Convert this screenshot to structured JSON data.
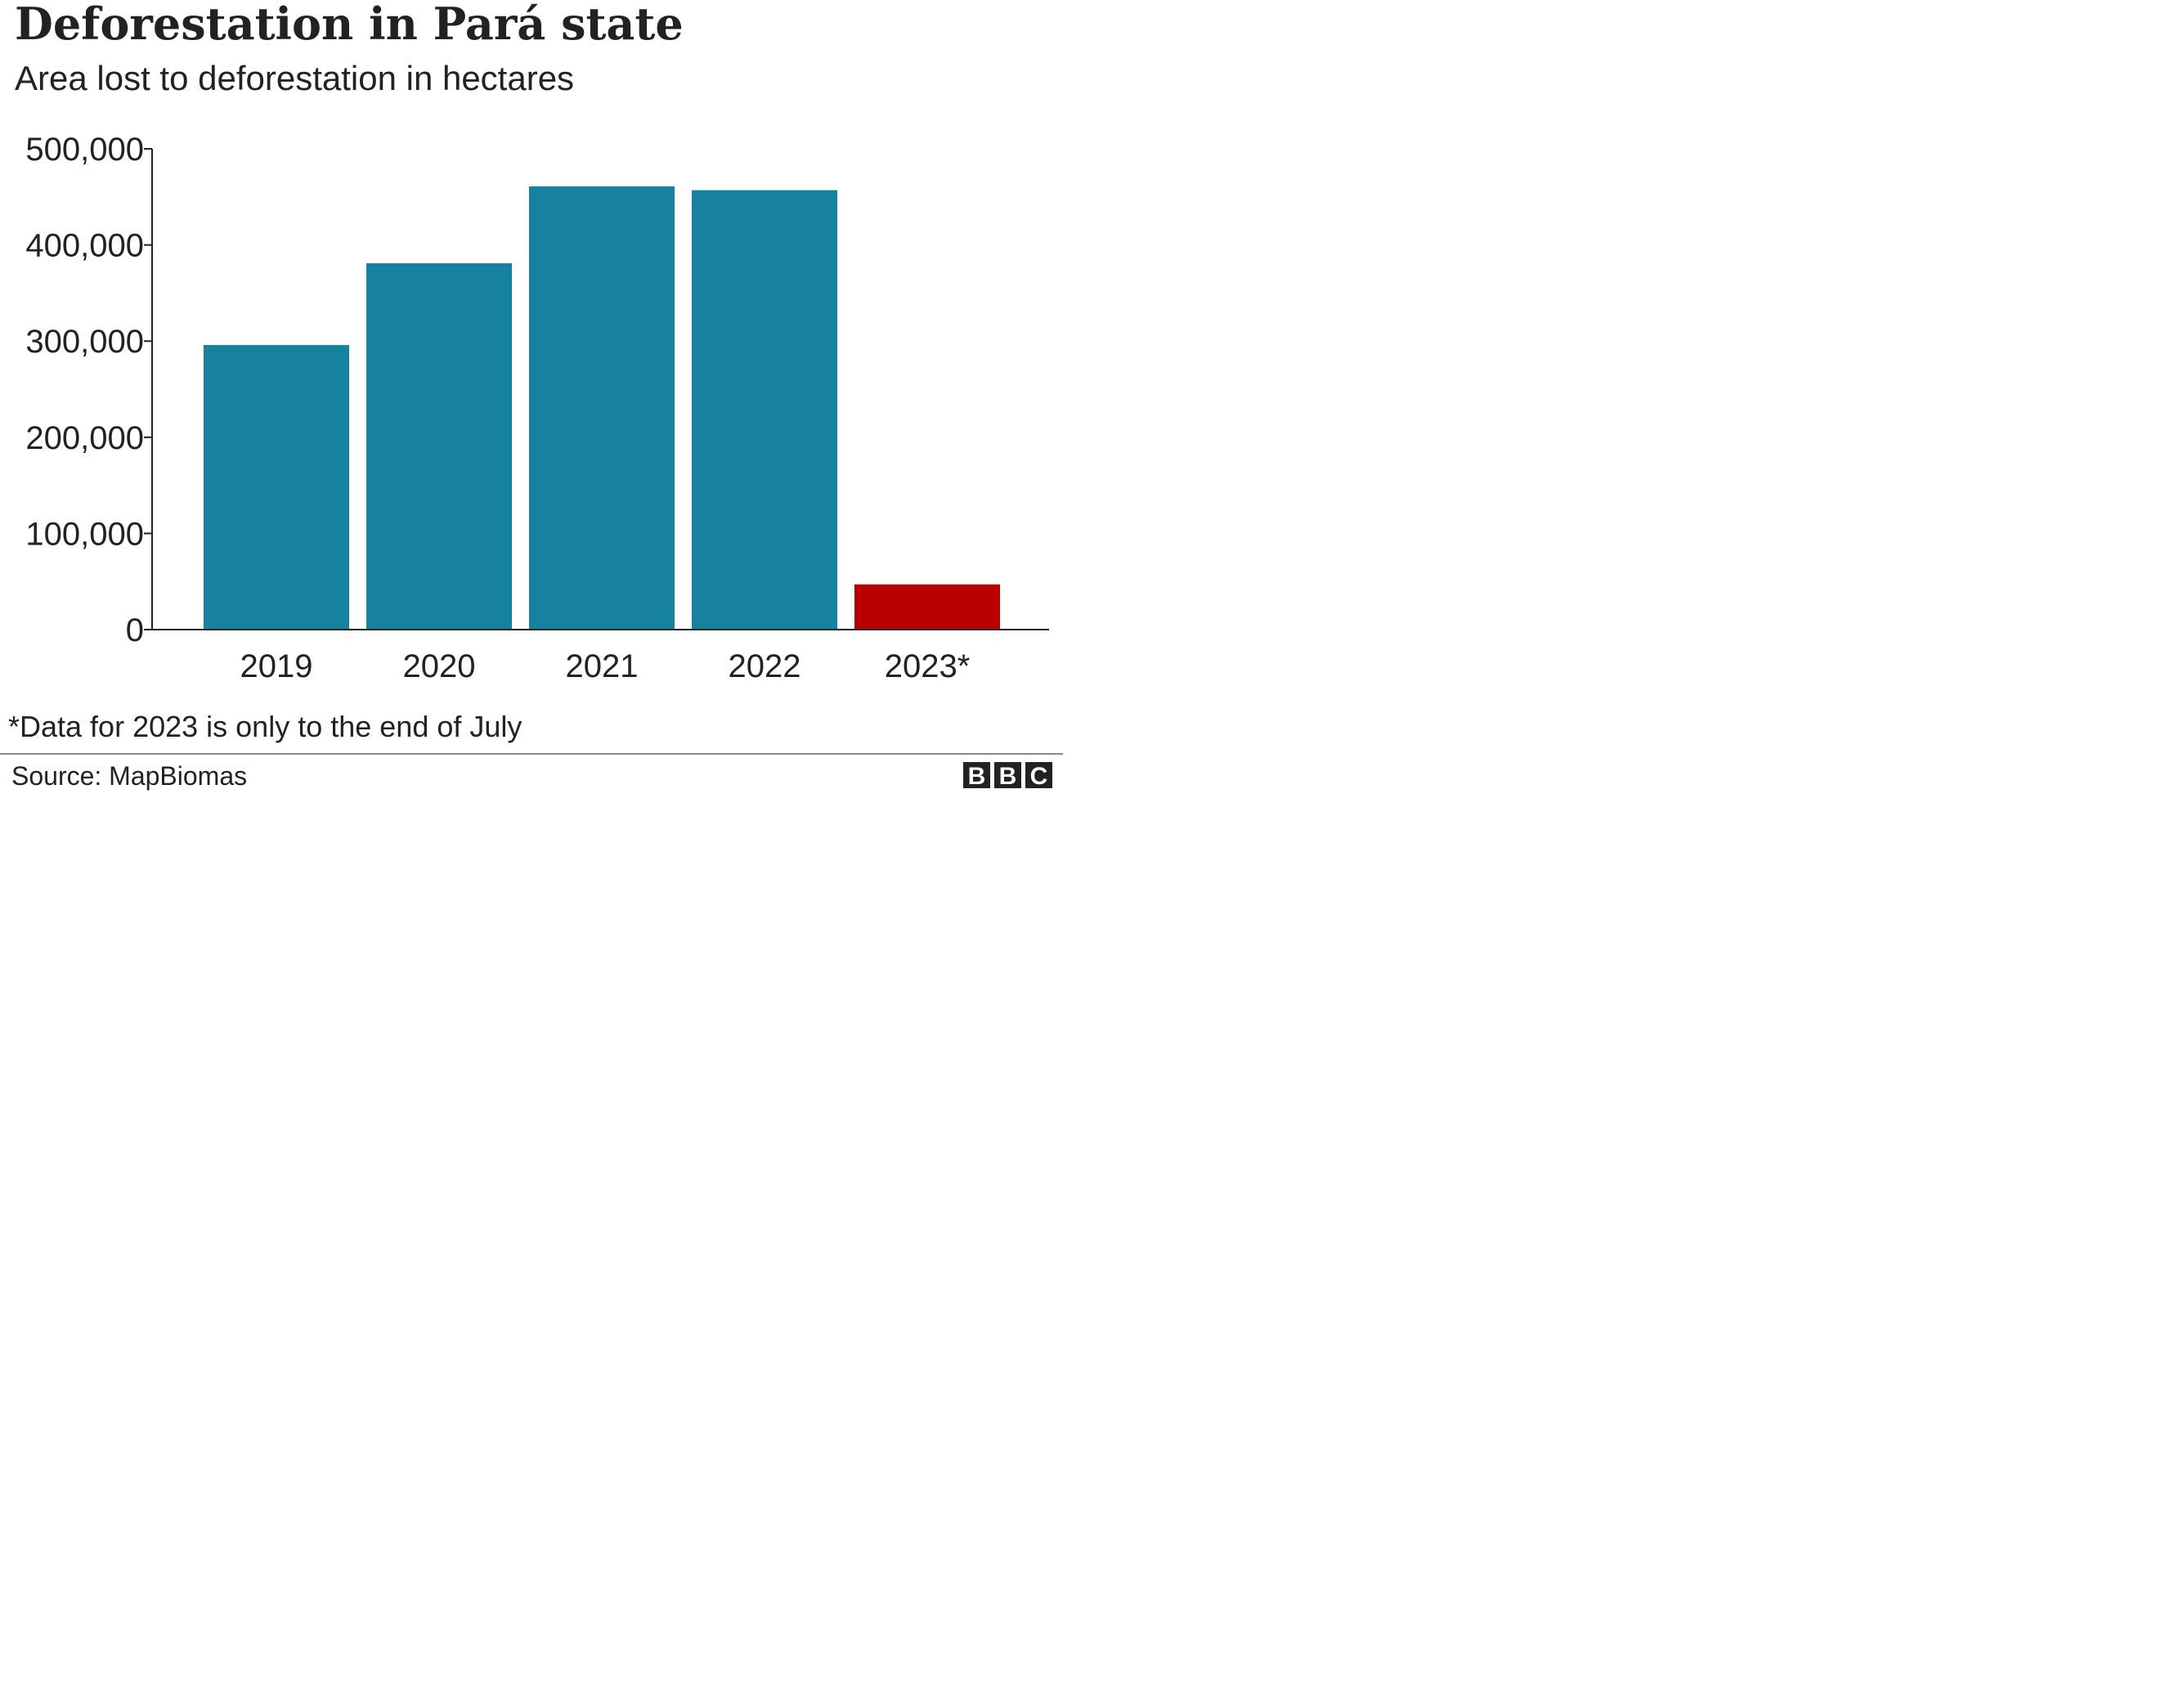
{
  "chart_data": {
    "type": "bar",
    "title": "Deforestation in Pará state",
    "subtitle": "Area lost to deforestation in hectares",
    "categories": [
      "2019",
      "2020",
      "2021",
      "2022",
      "2023*"
    ],
    "values": [
      296000,
      381000,
      461000,
      457000,
      47000
    ],
    "bar_colors": [
      "#1682a0",
      "#1682a0",
      "#1682a0",
      "#1682a0",
      "#b80000"
    ],
    "ylim": [
      0,
      500000
    ],
    "yticks": [
      0,
      100000,
      200000,
      300000,
      400000,
      500000
    ],
    "ytick_labels": [
      "0",
      "100,000",
      "200,000",
      "300,000",
      "400,000",
      "500,000"
    ],
    "grid": false,
    "xlabel": "",
    "ylabel": "",
    "note": "*Data for 2023 is only to the end of July",
    "source": "Source: MapBiomas"
  },
  "logo": {
    "letters": [
      "B",
      "B",
      "C"
    ],
    "color": "#222222"
  },
  "colors": {
    "text": "#222222",
    "axis": "#222222",
    "divider": "#8a8a8a"
  }
}
